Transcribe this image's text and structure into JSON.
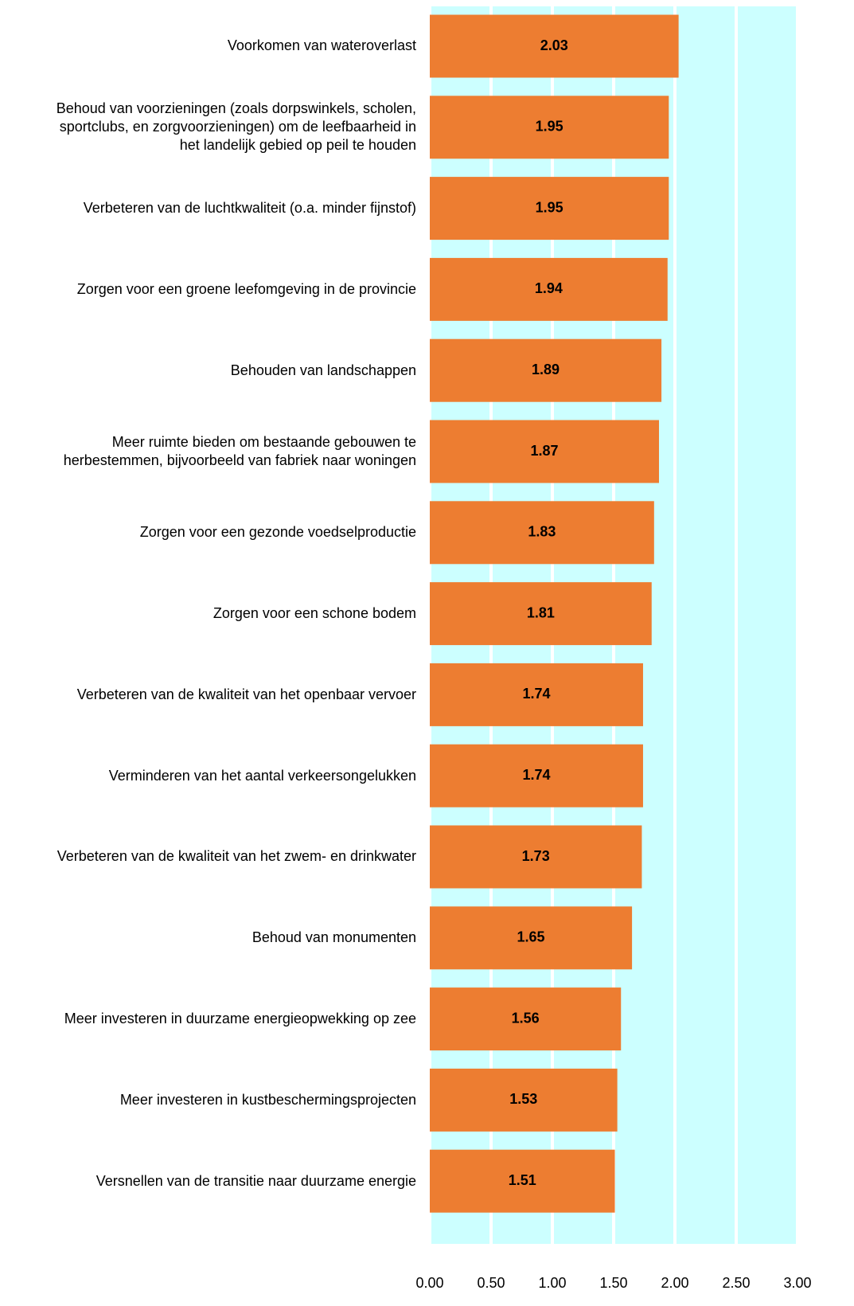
{
  "chart_data": {
    "type": "bar",
    "orientation": "horizontal",
    "categories": [
      "Voorkomen van wateroverlast",
      "Behoud van voorzieningen (zoals dorpswinkels, scholen,\nsportclubs, en zorgvoorzieningen) om de leefbaarheid in\nhet landelijk gebied op peil te houden",
      "Verbeteren van de luchtkwaliteit (o.a. minder fijnstof)",
      "Zorgen voor een groene leefomgeving in de provincie",
      "Behouden van landschappen",
      "Meer ruimte bieden om bestaande gebouwen te\nherbestemmen, bijvoorbeeld van fabriek naar woningen",
      "Zorgen voor een gezonde voedselproductie",
      "Zorgen voor een schone bodem",
      "Verbeteren van de kwaliteit van het openbaar vervoer",
      "Verminderen van het aantal verkeersongelukken",
      "Verbeteren van de kwaliteit van het zwem- en drinkwater",
      "Behoud van monumenten",
      "Meer investeren in duurzame energieopwekking op zee",
      "Meer investeren in kustbeschermingsprojecten",
      "Versnellen van de transitie naar duurzame energie"
    ],
    "values": [
      2.03,
      1.95,
      1.95,
      1.94,
      1.89,
      1.87,
      1.83,
      1.81,
      1.74,
      1.74,
      1.73,
      1.65,
      1.56,
      1.53,
      1.51
    ],
    "color": "#ed7d31",
    "background": "#ccffff",
    "xlim": [
      0,
      3
    ],
    "xticks": [
      {
        "value": 0,
        "label": "0.00"
      },
      {
        "value": 0.5,
        "label": "0.50"
      },
      {
        "value": 1,
        "label": "1.00"
      },
      {
        "value": 1.5,
        "label": "1.50"
      },
      {
        "value": 2,
        "label": "2.00"
      },
      {
        "value": 2.5,
        "label": "2.50"
      },
      {
        "value": 3,
        "label": "3.00"
      }
    ],
    "grid": true
  }
}
